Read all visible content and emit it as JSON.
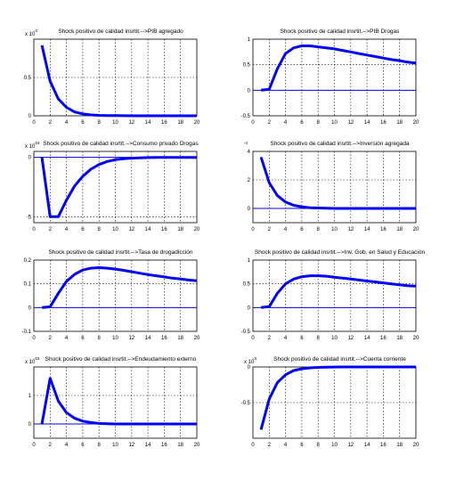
{
  "chart_data": [
    {
      "type": "line",
      "title": "Shock positivo de calidad insrtit.-->PIB agregado",
      "exponent_label": "x 10",
      "exponent_power": "-3",
      "xlim": [
        0,
        20
      ],
      "ylim": [
        0,
        1.0
      ],
      "x_ticks": [
        "0",
        "2",
        "4",
        "6",
        "8",
        "10",
        "12",
        "14",
        "16",
        "18",
        "20"
      ],
      "y_ticks": [
        {
          "v": 0,
          "label": "0"
        },
        {
          "v": 0.5,
          "label": "0.5"
        }
      ],
      "zero_line": false,
      "x": [
        1,
        2,
        3,
        4,
        5,
        6,
        7,
        8,
        9,
        10,
        11,
        12,
        13,
        14,
        15,
        16,
        17,
        18,
        19,
        20
      ],
      "series": [
        {
          "values": [
            0.92,
            0.45,
            0.22,
            0.11,
            0.05,
            0.025,
            0.012,
            0.006,
            0.003,
            0.002,
            0.001,
            0.0,
            0.0,
            0.0,
            0.0,
            0.0,
            0.0,
            0.0,
            0.0,
            0.0
          ]
        }
      ]
    },
    {
      "type": "line",
      "title": "Shock positivo de calidad insrtit.-->PIB Drogas",
      "exponent_label": "",
      "exponent_power": "",
      "xlim": [
        0,
        20
      ],
      "ylim": [
        -0.5,
        1.0
      ],
      "x_ticks": [
        "0",
        "2",
        "4",
        "6",
        "8",
        "10",
        "12",
        "14",
        "16",
        "18",
        "20"
      ],
      "y_ticks": [
        {
          "v": -0.5,
          "label": "-0.5"
        },
        {
          "v": 0,
          "label": "0"
        },
        {
          "v": 0.5,
          "label": "0.5"
        },
        {
          "v": 1,
          "label": "1"
        }
      ],
      "zero_line": true,
      "x": [
        1,
        2,
        3,
        4,
        5,
        6,
        7,
        8,
        9,
        10,
        11,
        12,
        13,
        14,
        15,
        16,
        17,
        18,
        19,
        20
      ],
      "series": [
        {
          "values": [
            0.0,
            0.02,
            0.42,
            0.72,
            0.83,
            0.87,
            0.87,
            0.85,
            0.83,
            0.81,
            0.78,
            0.75,
            0.72,
            0.69,
            0.66,
            0.63,
            0.6,
            0.58,
            0.55,
            0.53
          ]
        }
      ]
    },
    {
      "type": "line",
      "title": "Shock positivo de calidad insrtit.-->Consumo privado Drogas",
      "exponent_label": "x 10",
      "exponent_power": "-16",
      "xlim": [
        0,
        20
      ],
      "ylim": [
        -5.5,
        0.5
      ],
      "x_ticks": [
        "0",
        "2",
        "4",
        "6",
        "8",
        "10",
        "12",
        "14",
        "16",
        "18",
        "20"
      ],
      "y_ticks": [
        {
          "v": -5,
          "label": "-5"
        },
        {
          "v": 0,
          "label": "0"
        }
      ],
      "zero_line": true,
      "x": [
        1,
        2,
        3,
        4,
        5,
        6,
        7,
        8,
        9,
        10,
        11,
        12,
        13,
        14,
        15,
        16,
        17,
        18,
        19,
        20
      ],
      "series": [
        {
          "values": [
            0.0,
            -5.0,
            -5.0,
            -3.6,
            -2.4,
            -1.6,
            -1.0,
            -0.6,
            -0.35,
            -0.2,
            -0.12,
            -0.07,
            -0.04,
            -0.02,
            -0.01,
            0.0,
            0.0,
            0.0,
            0.0,
            0.0
          ]
        }
      ]
    },
    {
      "type": "line",
      "title": "Shock positivo de calidad insrtit.-->Inversión agregada",
      "exponent_label": "",
      "exponent_power": "-4",
      "xlim": [
        0,
        20
      ],
      "ylim": [
        -1,
        4
      ],
      "x_ticks": [
        "0",
        "2",
        "4",
        "6",
        "8",
        "10",
        "12",
        "14",
        "16",
        "18",
        "20"
      ],
      "y_ticks": [
        {
          "v": 0,
          "label": "0"
        },
        {
          "v": 2,
          "label": "2"
        },
        {
          "v": 4,
          "label": "4"
        }
      ],
      "zero_line": true,
      "x": [
        1,
        2,
        3,
        4,
        5,
        6,
        7,
        8,
        9,
        10,
        11,
        12,
        13,
        14,
        15,
        16,
        17,
        18,
        19,
        20
      ],
      "series": [
        {
          "values": [
            3.6,
            1.8,
            0.9,
            0.45,
            0.22,
            0.11,
            0.05,
            0.03,
            0.01,
            0.0,
            0.0,
            0.0,
            0.0,
            0.0,
            0.0,
            0.0,
            0.0,
            0.0,
            0.0,
            0.0
          ]
        }
      ]
    },
    {
      "type": "line",
      "title": "Shock positivo de calidad insrtit.-->Tasa de drogadicción",
      "exponent_label": "",
      "exponent_power": "",
      "xlim": [
        0,
        20
      ],
      "ylim": [
        -0.1,
        0.2
      ],
      "x_ticks": [
        "0",
        "2",
        "4",
        "6",
        "8",
        "10",
        "12",
        "14",
        "16",
        "18",
        "20"
      ],
      "y_ticks": [
        {
          "v": -0.1,
          "label": "-0.1"
        },
        {
          "v": 0,
          "label": "0"
        },
        {
          "v": 0.1,
          "label": "0.1"
        },
        {
          "v": 0.2,
          "label": "0.2"
        }
      ],
      "zero_line": true,
      "x": [
        1,
        2,
        3,
        4,
        5,
        6,
        7,
        8,
        9,
        10,
        11,
        12,
        13,
        14,
        15,
        16,
        17,
        18,
        19,
        20
      ],
      "series": [
        {
          "values": [
            0.0,
            0.003,
            0.06,
            0.11,
            0.14,
            0.158,
            0.166,
            0.168,
            0.166,
            0.162,
            0.157,
            0.151,
            0.145,
            0.139,
            0.134,
            0.129,
            0.124,
            0.12,
            0.116,
            0.113
          ]
        }
      ]
    },
    {
      "type": "line",
      "title": "Shock positivo de calidad insrtit.-->Inv. Gob. en Salud y Educación",
      "exponent_label": "",
      "exponent_power": "",
      "xlim": [
        0,
        20
      ],
      "ylim": [
        -0.5,
        1.0
      ],
      "x_ticks": [
        "0",
        "2",
        "4",
        "6",
        "8",
        "10",
        "12",
        "14",
        "16",
        "18",
        "20"
      ],
      "y_ticks": [
        {
          "v": -0.5,
          "label": "-0.5"
        },
        {
          "v": 0,
          "label": "0"
        },
        {
          "v": 0.5,
          "label": "0.5"
        },
        {
          "v": 1,
          "label": "1"
        }
      ],
      "zero_line": true,
      "x": [
        1,
        2,
        3,
        4,
        5,
        6,
        7,
        8,
        9,
        10,
        11,
        12,
        13,
        14,
        15,
        16,
        17,
        18,
        19,
        20
      ],
      "series": [
        {
          "values": [
            0.0,
            0.02,
            0.3,
            0.5,
            0.6,
            0.65,
            0.67,
            0.67,
            0.66,
            0.64,
            0.62,
            0.6,
            0.58,
            0.56,
            0.54,
            0.52,
            0.5,
            0.48,
            0.46,
            0.45
          ]
        }
      ]
    },
    {
      "type": "line",
      "title": "Shock positivo de calidad insrtit.-->Endeudamiento externo",
      "exponent_label": "x 10",
      "exponent_power": "-16",
      "xlim": [
        0,
        20
      ],
      "ylim": [
        -0.5,
        2.0
      ],
      "x_ticks": [
        "0",
        "2",
        "4",
        "6",
        "8",
        "10",
        "12",
        "14",
        "16",
        "18",
        "20"
      ],
      "y_ticks": [
        {
          "v": 0,
          "label": "0"
        },
        {
          "v": 1,
          "label": "1"
        }
      ],
      "zero_line": true,
      "x": [
        1,
        2,
        3,
        4,
        5,
        6,
        7,
        8,
        9,
        10,
        11,
        12,
        13,
        14,
        15,
        16,
        17,
        18,
        19,
        20
      ],
      "series": [
        {
          "values": [
            0.0,
            1.6,
            0.8,
            0.4,
            0.2,
            0.1,
            0.05,
            0.02,
            0.01,
            0.0,
            0.0,
            0.0,
            0.0,
            0.0,
            0.0,
            0.0,
            0.0,
            0.0,
            0.0,
            0.0
          ]
        }
      ]
    },
    {
      "type": "line",
      "title": "Shock positivo de calidad insrtit.-->Cuenta corriente",
      "exponent_label": "x 10",
      "exponent_power": "-3",
      "xlim": [
        0,
        20
      ],
      "ylim": [
        -1.0,
        0.0
      ],
      "x_ticks": [
        "0",
        "2",
        "4",
        "6",
        "8",
        "10",
        "12",
        "14",
        "16",
        "18",
        "20"
      ],
      "y_ticks": [
        {
          "v": -0.5,
          "label": "-0.5"
        },
        {
          "v": 0,
          "label": "0"
        }
      ],
      "zero_line": true,
      "x": [
        1,
        2,
        3,
        4,
        5,
        6,
        7,
        8,
        9,
        10,
        11,
        12,
        13,
        14,
        15,
        16,
        17,
        18,
        19,
        20
      ],
      "series": [
        {
          "values": [
            -0.88,
            -0.45,
            -0.22,
            -0.11,
            -0.05,
            -0.025,
            -0.012,
            -0.006,
            -0.003,
            -0.001,
            0.0,
            0.0,
            0.0,
            0.0,
            0.0,
            0.0,
            0.0,
            0.0,
            0.0,
            0.0
          ]
        }
      ]
    }
  ],
  "style": {
    "line_color": "#0000ff",
    "zero_line_color": "#0000ff",
    "grid": true
  }
}
